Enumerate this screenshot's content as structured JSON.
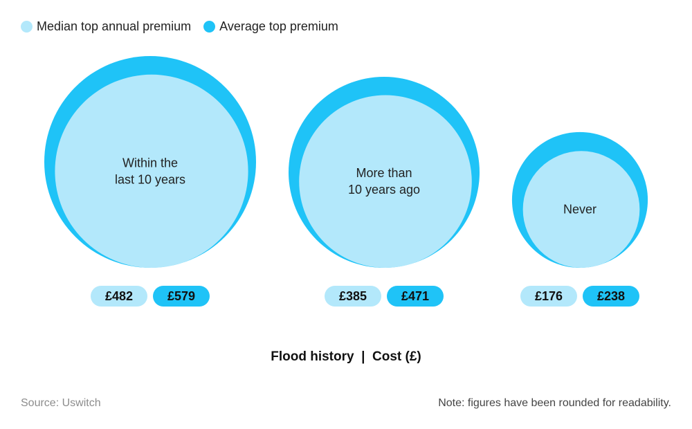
{
  "chart_data": {
    "type": "bubble",
    "title": "",
    "xlabel": "Flood history  |  Cost (£)",
    "categories": [
      {
        "label_lines": [
          "Within the",
          "last 10 years"
        ]
      },
      {
        "label_lines": [
          "More than",
          "10 years ago"
        ]
      },
      {
        "label_lines": [
          "Never"
        ]
      }
    ],
    "series": [
      {
        "name": "Median top annual premium",
        "color": "#b3e8fb",
        "values": [
          482,
          385,
          176
        ],
        "labels": [
          "£482",
          "£385",
          "£176"
        ]
      },
      {
        "name": "Average top premium",
        "color": "#1fc3f7",
        "values": [
          579,
          471,
          238
        ],
        "labels": [
          "£579",
          "£471",
          "£238"
        ]
      }
    ],
    "legend_position": "top-left",
    "grid": false
  },
  "footer": {
    "source": "Source: Uswitch",
    "note": "Note: figures have been rounded for readability."
  }
}
